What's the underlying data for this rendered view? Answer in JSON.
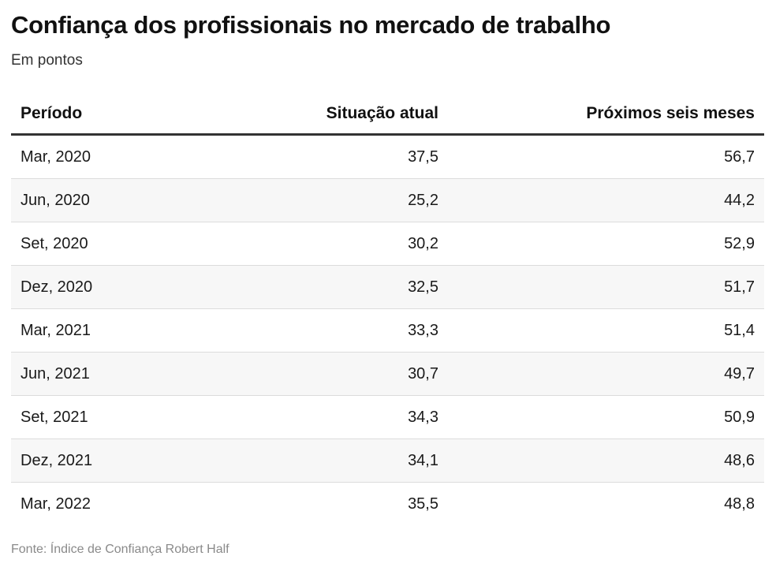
{
  "title": "Confiança dos profissionais no mercado de trabalho",
  "subtitle": "Em pontos",
  "source": "Fonte: Índice de Confiança Robert Half",
  "chart_data": {
    "type": "table",
    "title": "Confiança dos profissionais no mercado de trabalho",
    "subtitle": "Em pontos",
    "columns": [
      "Período",
      "Situação atual",
      "Próximos seis meses"
    ],
    "rows": [
      [
        "Mar, 2020",
        "37,5",
        "56,7"
      ],
      [
        "Jun, 2020",
        "25,2",
        "44,2"
      ],
      [
        "Set, 2020",
        "30,2",
        "52,9"
      ],
      [
        "Dez, 2020",
        "32,5",
        "51,7"
      ],
      [
        "Mar, 2021",
        "33,3",
        "51,4"
      ],
      [
        "Jun, 2021",
        "30,7",
        "49,7"
      ],
      [
        "Set, 2021",
        "34,3",
        "50,9"
      ],
      [
        "Dez, 2021",
        "34,1",
        "48,6"
      ],
      [
        "Mar, 2022",
        "35,5",
        "48,8"
      ]
    ]
  }
}
